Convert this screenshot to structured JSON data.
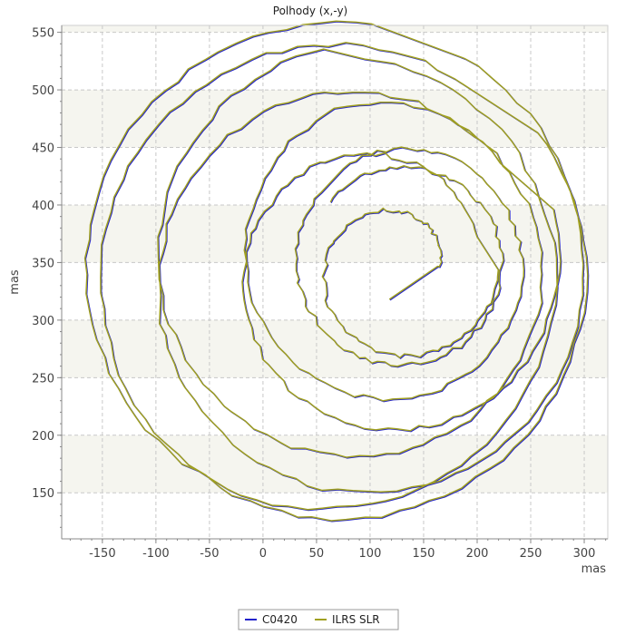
{
  "chart_data": {
    "type": "line",
    "title": "Polhody (x,-y)",
    "xlabel": "mas",
    "ylabel": "mas",
    "xlim": [
      -188,
      322
    ],
    "ylim": [
      110,
      556
    ],
    "xticks": [
      -150,
      -100,
      -50,
      0,
      50,
      100,
      150,
      200,
      250,
      300
    ],
    "yticks": [
      150,
      200,
      250,
      300,
      350,
      400,
      450,
      500,
      550
    ],
    "grid": true,
    "legend_position": "bottom-center",
    "series": [
      {
        "name": "C0420",
        "color": "#2222cc"
      },
      {
        "name": "ILRS SLR",
        "color": "#a0a020"
      }
    ],
    "polhody": {
      "start": [
        118,
        318
      ],
      "loops": [
        {
          "cx": 125,
          "cy": 345,
          "r_start": 40,
          "r_end": 95
        },
        {
          "cx": 110,
          "cy": 342,
          "r_start": 95,
          "r_end": 170
        },
        {
          "cx": 90,
          "cy": 335,
          "r_start": 170,
          "r_end": 215
        },
        {
          "cx": 70,
          "cy": 338,
          "r_start": 215,
          "r_end": 235
        },
        {
          "cx": 62,
          "cy": 340,
          "r_start": 235,
          "r_end": 205
        },
        {
          "cx": 95,
          "cy": 348,
          "r_start": 205,
          "r_end": 150
        },
        {
          "cx": 125,
          "cy": 352,
          "r_start": 150,
          "r_end": 100
        },
        {
          "cx": 130,
          "cy": 350,
          "r_start": 100,
          "r_end": 88
        }
      ]
    }
  }
}
